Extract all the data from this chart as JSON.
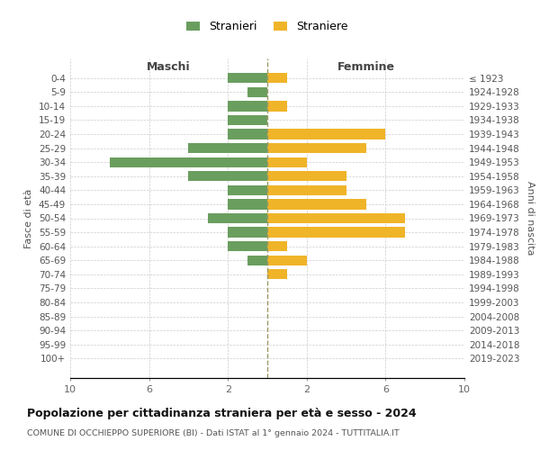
{
  "age_groups": [
    "0-4",
    "5-9",
    "10-14",
    "15-19",
    "20-24",
    "25-29",
    "30-34",
    "35-39",
    "40-44",
    "45-49",
    "50-54",
    "55-59",
    "60-64",
    "65-69",
    "70-74",
    "75-79",
    "80-84",
    "85-89",
    "90-94",
    "95-99",
    "100+"
  ],
  "birth_years": [
    "2019-2023",
    "2014-2018",
    "2009-2013",
    "2004-2008",
    "1999-2003",
    "1994-1998",
    "1989-1993",
    "1984-1988",
    "1979-1983",
    "1974-1978",
    "1969-1973",
    "1964-1968",
    "1959-1963",
    "1954-1958",
    "1949-1953",
    "1944-1948",
    "1939-1943",
    "1934-1938",
    "1929-1933",
    "1924-1928",
    "≤ 1923"
  ],
  "males": [
    2,
    1,
    2,
    2,
    2,
    4,
    8,
    4,
    2,
    2,
    3,
    2,
    2,
    1,
    0,
    0,
    0,
    0,
    0,
    0,
    0
  ],
  "females": [
    1,
    0,
    1,
    0,
    6,
    5,
    2,
    4,
    4,
    5,
    7,
    7,
    1,
    2,
    1,
    0,
    0,
    0,
    0,
    0,
    0
  ],
  "male_color": "#6a9e5e",
  "female_color": "#f0b429",
  "background_color": "#ffffff",
  "grid_color": "#cccccc",
  "title": "Popolazione per cittadinanza straniera per età e sesso - 2024",
  "subtitle": "COMUNE DI OCCHIEPPO SUPERIORE (BI) - Dati ISTAT al 1° gennaio 2024 - TUTTITALIA.IT",
  "xlabel_left": "Maschi",
  "xlabel_right": "Femmine",
  "ylabel": "Fasce di età",
  "ylabel_right": "Anni di nascita",
  "legend_male": "Stranieri",
  "legend_female": "Straniere",
  "xlim": 10
}
